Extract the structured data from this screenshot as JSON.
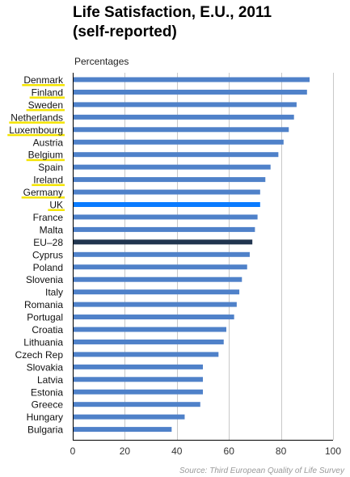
{
  "chart_data": {
    "type": "bar",
    "orientation": "horizontal",
    "title": "Life Satisfaction, E.U., 2011\n(self-reported)",
    "unit_label": "Percentages",
    "source": "Source: Third European Quality of Life Survey",
    "categories": [
      "Denmark",
      "Finland",
      "Sweden",
      "Netherlands",
      "Luxembourg",
      "Austria",
      "Belgium",
      "Spain",
      "Ireland",
      "Germany",
      "UK",
      "France",
      "Malta",
      "EU–28",
      "Cyprus",
      "Poland",
      "Slovenia",
      "Italy",
      "Romania",
      "Portugal",
      "Croatia",
      "Lithuania",
      "Czech Rep",
      "Slovakia",
      "Latvia",
      "Estonia",
      "Greece",
      "Hungary",
      "Bulgaria"
    ],
    "values": [
      91,
      90,
      86,
      85,
      83,
      81,
      79,
      76,
      74,
      72,
      72,
      71,
      70,
      69,
      68,
      67,
      65,
      64,
      63,
      62,
      59,
      58,
      56,
      50,
      50,
      50,
      49,
      43,
      38
    ],
    "highlighted": [
      "Denmark",
      "Finland",
      "Sweden",
      "Netherlands",
      "Luxembourg",
      "Belgium",
      "Ireland",
      "Germany",
      "UK"
    ],
    "emphasis": {
      "UK": "#0a7bff",
      "EU–28": "#21354f"
    },
    "xlim": [
      0,
      100
    ],
    "xticks": [
      0,
      20,
      40,
      60,
      80,
      100
    ],
    "grid": true,
    "colors": {
      "bar": "#4f81c9",
      "grid": "#c8c8c8",
      "axis": "#000000",
      "underline": "#f4e400"
    }
  }
}
